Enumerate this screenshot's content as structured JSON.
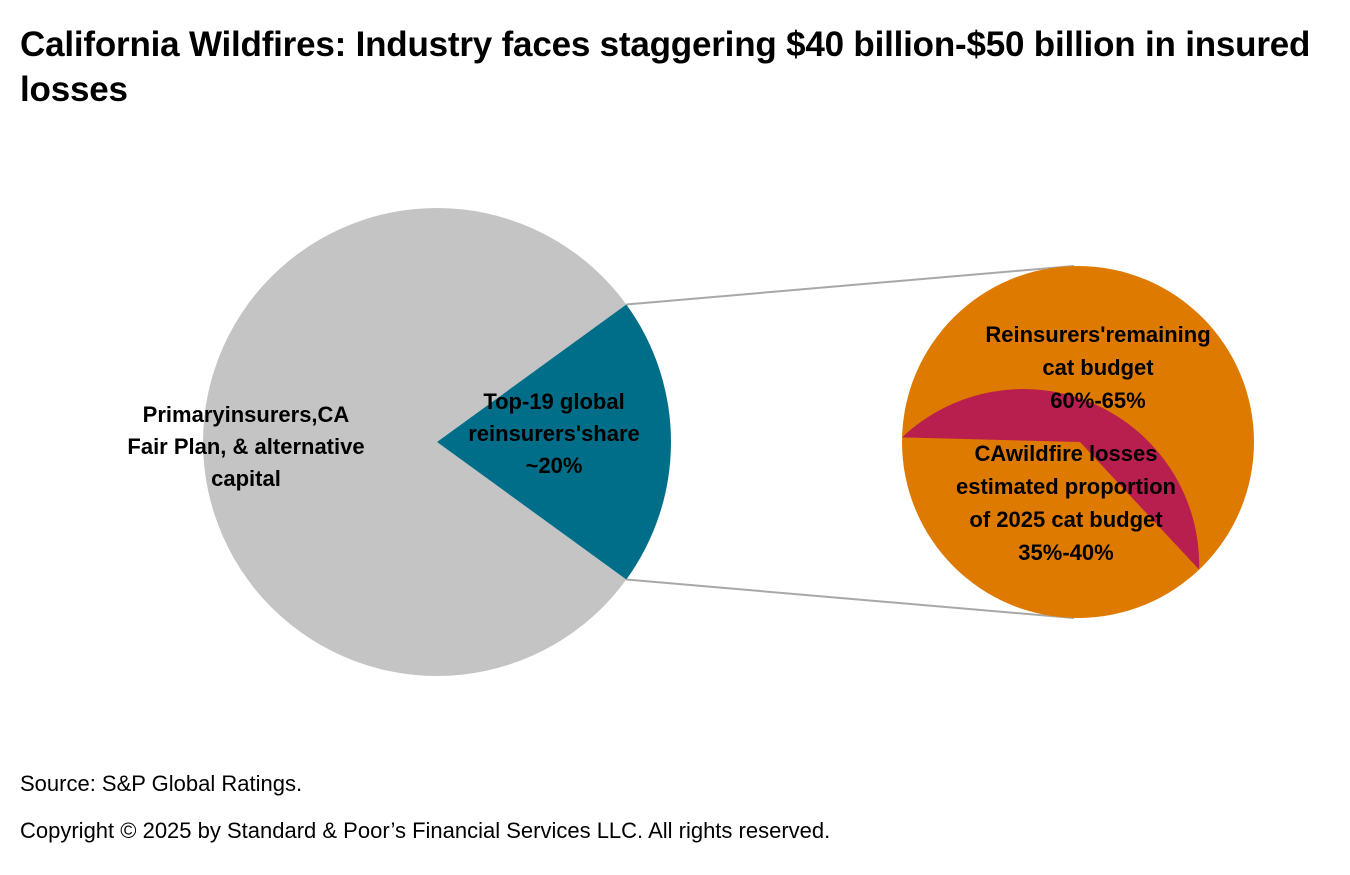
{
  "title": "California Wildfires: Industry faces staggering $40 billion-$50 billion in insured losses",
  "chart_data": {
    "type": "pie",
    "subtype": "pie-of-pie",
    "main_pie": {
      "slices": [
        {
          "name": "Primary insurers, CA Fair Plan, & alternative capital",
          "value": 80,
          "color": "#c3c4c3",
          "label_lines": [
            "Primaryinsurers,CA",
            "Fair Plan, & alternative",
            "capital"
          ]
        },
        {
          "name": "Top-19 global reinsurers' share",
          "value": 20,
          "value_text": "~20%",
          "color": "#006d89",
          "label_lines": [
            "Top-19 global",
            "reinsurers'share",
            "~20%"
          ]
        }
      ]
    },
    "secondary_pie": {
      "description": "Breakdown of top-19 global reinsurers' 2025 cat budget",
      "slices": [
        {
          "name": "Reinsurers' remaining cat budget",
          "range": [
            60,
            65
          ],
          "value_text": "60%-65%",
          "color": "#de7a00",
          "label_lines": [
            "Reinsurers'remaining",
            "cat budget",
            "60%-65%"
          ]
        },
        {
          "name": "CA wildfire losses estimated proportion of 2025 cat budget",
          "range": [
            35,
            40
          ],
          "value_text": "35%-40%",
          "color": "#b81f4e",
          "label_lines": [
            "CAwildfire losses",
            "estimated proportion",
            "of 2025 cat budget",
            "35%-40%"
          ]
        }
      ]
    },
    "connector_color": "#a8a8a8"
  },
  "footer": {
    "source": "Source: S&P Global Ratings.",
    "copyright": "Copyright © 2025 by Standard & Poor’s Financial Services LLC. All rights reserved."
  }
}
